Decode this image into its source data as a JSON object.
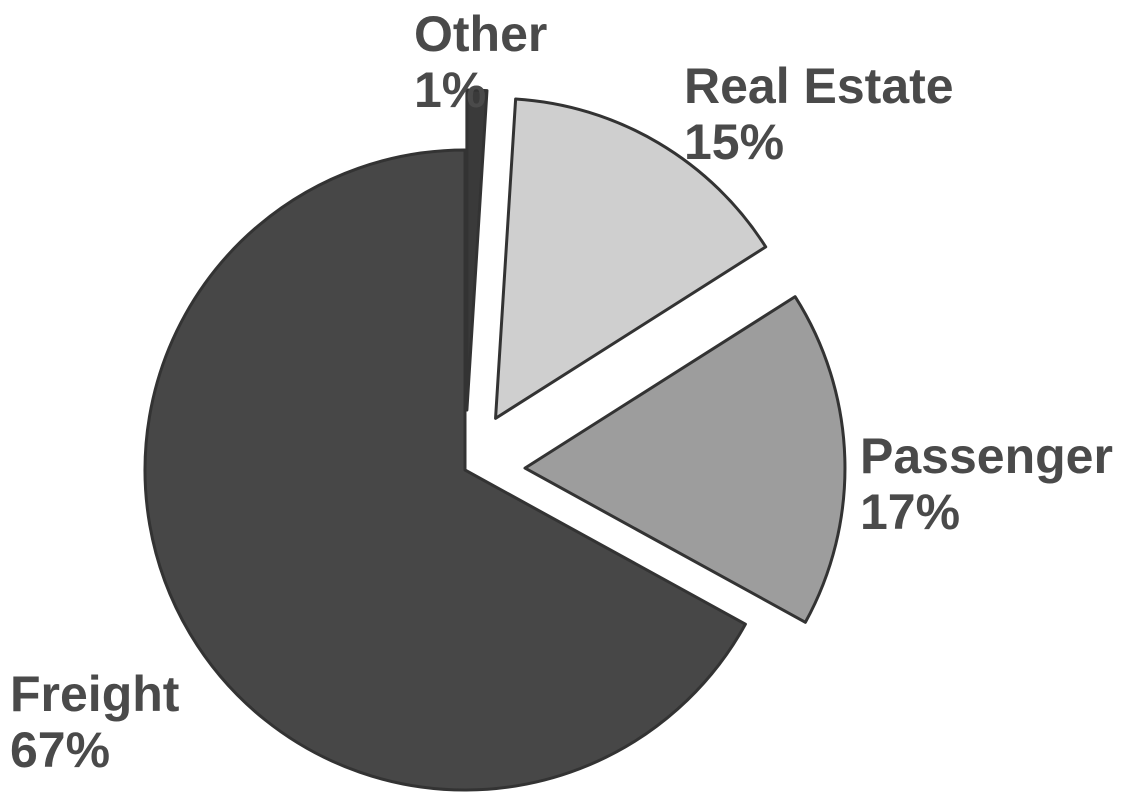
{
  "chart_data": {
    "type": "pie",
    "title": "",
    "slices": [
      {
        "label": "Other",
        "percent_label": "1%",
        "value": 1,
        "color": "#3a3a3a",
        "exploded": true
      },
      {
        "label": "Real Estate",
        "percent_label": "15%",
        "value": 15,
        "color": "#cfcfcf",
        "exploded": true
      },
      {
        "label": "Passenger",
        "percent_label": "17%",
        "value": 17,
        "color": "#9d9d9d",
        "exploded": true
      },
      {
        "label": "Freight",
        "percent_label": "67%",
        "value": 67,
        "color": "#474747",
        "exploded": false
      }
    ],
    "start_angle_deg": 0,
    "direction": "clockwise",
    "legend": "none",
    "label_color": "#4a4a4a"
  }
}
